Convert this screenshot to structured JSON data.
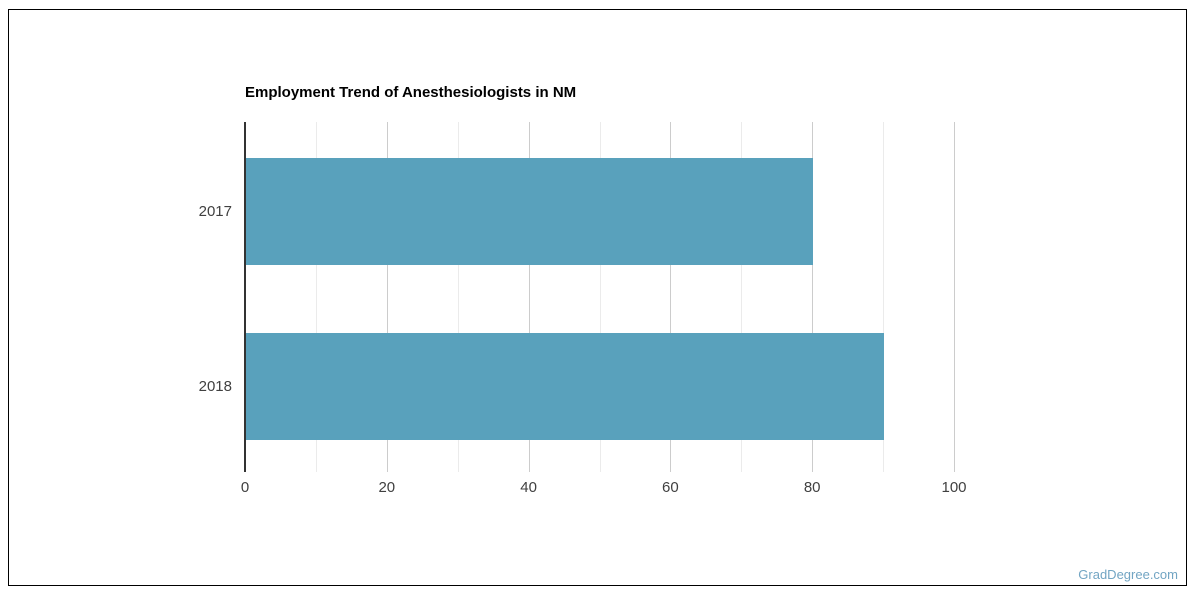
{
  "chart_data": {
    "type": "bar",
    "orientation": "horizontal",
    "title": "Employment Trend of Anesthesiologists in NM",
    "categories": [
      "2017",
      "2018"
    ],
    "values": [
      80,
      90
    ],
    "xlabel": "",
    "ylabel": "",
    "xlim": [
      0,
      108
    ],
    "major_ticks": [
      0,
      20,
      40,
      60,
      80,
      100
    ],
    "minor_ticks": [
      10,
      30,
      50,
      70,
      90
    ],
    "grid": true,
    "legend": "none"
  },
  "colors": {
    "bar": "#59a1bc",
    "axis_baseline": "#333333",
    "major_gridline": "#cccccc",
    "minor_gridline": "#ebebeb",
    "tick_label": "#404040",
    "watermark": "#72a5c3",
    "frame_border": "#000000"
  },
  "watermark": {
    "label": "GradDegree.com"
  }
}
